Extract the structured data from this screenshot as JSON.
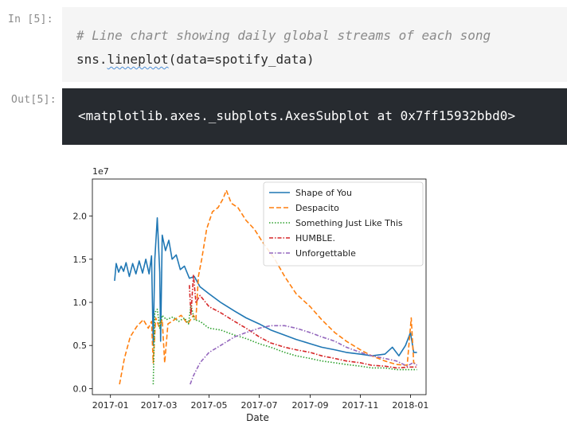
{
  "cell_in": {
    "prompt": "In [5]:",
    "comment": "# Line chart showing daily global streams of each song",
    "code_prefix": "sns.",
    "code_func": "lineplot",
    "code_suffix": "(data=spotify_data)"
  },
  "cell_out": {
    "prompt": "Out[5]:",
    "text": "<matplotlib.axes._subplots.AxesSubplot at 0x7ff15932bbd0>"
  },
  "chart_data": {
    "type": "line",
    "title": "",
    "xlabel": "Date",
    "ylabel": "",
    "y_offset_label": "1e7",
    "xlim": [
      "2016-12-10",
      "2018-01-20"
    ],
    "ylim": [
      -0.07,
      2.43
    ],
    "x_ticks": [
      "2017-01",
      "2017-03",
      "2017-05",
      "2017-07",
      "2017-09",
      "2017-11",
      "2018-01"
    ],
    "y_ticks": [
      "0.0",
      "0.5",
      "1.0",
      "1.5",
      "2.0"
    ],
    "y_tick_values": [
      0.0,
      0.5,
      1.0,
      1.5,
      2.0
    ],
    "legend_position": "upper-right",
    "grid": false,
    "series": [
      {
        "name": "Shape of You",
        "color": "#1f77b4",
        "dash": "solid",
        "points": [
          [
            "2017-01-06",
            1.25
          ],
          [
            "2017-01-08",
            1.45
          ],
          [
            "2017-01-11",
            1.35
          ],
          [
            "2017-01-14",
            1.42
          ],
          [
            "2017-01-17",
            1.36
          ],
          [
            "2017-01-20",
            1.46
          ],
          [
            "2017-01-24",
            1.3
          ],
          [
            "2017-01-28",
            1.45
          ],
          [
            "2017-02-01",
            1.33
          ],
          [
            "2017-02-05",
            1.48
          ],
          [
            "2017-02-09",
            1.34
          ],
          [
            "2017-02-13",
            1.5
          ],
          [
            "2017-02-17",
            1.33
          ],
          [
            "2017-02-20",
            1.54
          ],
          [
            "2017-02-22",
            0.5
          ],
          [
            "2017-02-24",
            1.5
          ],
          [
            "2017-02-27",
            1.98
          ],
          [
            "2017-03-02",
            1.35
          ],
          [
            "2017-03-03",
            0.55
          ],
          [
            "2017-03-05",
            1.78
          ],
          [
            "2017-03-09",
            1.6
          ],
          [
            "2017-03-13",
            1.72
          ],
          [
            "2017-03-17",
            1.5
          ],
          [
            "2017-03-22",
            1.55
          ],
          [
            "2017-03-27",
            1.38
          ],
          [
            "2017-04-01",
            1.42
          ],
          [
            "2017-04-07",
            1.28
          ],
          [
            "2017-04-13",
            1.3
          ],
          [
            "2017-04-20",
            1.18
          ],
          [
            "2017-05-01",
            1.1
          ],
          [
            "2017-05-15",
            1.0
          ],
          [
            "2017-06-01",
            0.9
          ],
          [
            "2017-06-15",
            0.82
          ],
          [
            "2017-07-01",
            0.75
          ],
          [
            "2017-07-15",
            0.68
          ],
          [
            "2017-08-01",
            0.62
          ],
          [
            "2017-08-15",
            0.57
          ],
          [
            "2017-09-01",
            0.52
          ],
          [
            "2017-09-15",
            0.48
          ],
          [
            "2017-10-01",
            0.45
          ],
          [
            "2017-10-15",
            0.42
          ],
          [
            "2017-11-01",
            0.4
          ],
          [
            "2017-11-15",
            0.38
          ],
          [
            "2017-12-01",
            0.4
          ],
          [
            "2017-12-10",
            0.48
          ],
          [
            "2017-12-18",
            0.38
          ],
          [
            "2017-12-26",
            0.5
          ],
          [
            "2018-01-01",
            0.65
          ],
          [
            "2018-01-05",
            0.42
          ],
          [
            "2018-01-09",
            0.42
          ]
        ]
      },
      {
        "name": "Despacito",
        "color": "#ff7f0e",
        "dash": "dashed",
        "points": [
          [
            "2017-01-12",
            0.05
          ],
          [
            "2017-01-18",
            0.35
          ],
          [
            "2017-01-25",
            0.6
          ],
          [
            "2017-02-02",
            0.72
          ],
          [
            "2017-02-10",
            0.8
          ],
          [
            "2017-02-16",
            0.7
          ],
          [
            "2017-02-20",
            0.78
          ],
          [
            "2017-02-22",
            0.3
          ],
          [
            "2017-02-25",
            0.82
          ],
          [
            "2017-03-01",
            0.72
          ],
          [
            "2017-03-05",
            0.8
          ],
          [
            "2017-03-08",
            0.3
          ],
          [
            "2017-03-12",
            0.75
          ],
          [
            "2017-03-20",
            0.8
          ],
          [
            "2017-03-28",
            0.85
          ],
          [
            "2017-04-05",
            0.75
          ],
          [
            "2017-04-12",
            0.85
          ],
          [
            "2017-04-15",
            0.8
          ],
          [
            "2017-04-18",
            1.3
          ],
          [
            "2017-04-22",
            1.5
          ],
          [
            "2017-04-28",
            1.85
          ],
          [
            "2017-05-05",
            2.05
          ],
          [
            "2017-05-12",
            2.1
          ],
          [
            "2017-05-18",
            2.2
          ],
          [
            "2017-05-22",
            2.3
          ],
          [
            "2017-05-28",
            2.15
          ],
          [
            "2017-06-05",
            2.1
          ],
          [
            "2017-06-15",
            1.95
          ],
          [
            "2017-06-25",
            1.85
          ],
          [
            "2017-07-05",
            1.7
          ],
          [
            "2017-07-20",
            1.5
          ],
          [
            "2017-08-01",
            1.3
          ],
          [
            "2017-08-15",
            1.1
          ],
          [
            "2017-09-01",
            0.95
          ],
          [
            "2017-09-15",
            0.8
          ],
          [
            "2017-10-01",
            0.65
          ],
          [
            "2017-10-15",
            0.55
          ],
          [
            "2017-11-01",
            0.45
          ],
          [
            "2017-11-15",
            0.38
          ],
          [
            "2017-12-01",
            0.32
          ],
          [
            "2017-12-15",
            0.28
          ],
          [
            "2017-12-28",
            0.27
          ],
          [
            "2018-01-02",
            0.82
          ],
          [
            "2018-01-05",
            0.3
          ],
          [
            "2018-01-09",
            0.28
          ]
        ]
      },
      {
        "name": "Something Just Like This",
        "color": "#2ca02c",
        "dash": "dotted",
        "points": [
          [
            "2017-02-22",
            0.05
          ],
          [
            "2017-02-24",
            0.88
          ],
          [
            "2017-02-27",
            0.92
          ],
          [
            "2017-03-02",
            0.7
          ],
          [
            "2017-03-05",
            0.85
          ],
          [
            "2017-03-10",
            0.8
          ],
          [
            "2017-03-18",
            0.83
          ],
          [
            "2017-03-25",
            0.78
          ],
          [
            "2017-04-01",
            0.82
          ],
          [
            "2017-04-06",
            0.75
          ],
          [
            "2017-04-09",
            0.97
          ],
          [
            "2017-04-13",
            0.8
          ],
          [
            "2017-04-20",
            0.78
          ],
          [
            "2017-05-01",
            0.7
          ],
          [
            "2017-05-15",
            0.68
          ],
          [
            "2017-06-01",
            0.62
          ],
          [
            "2017-06-15",
            0.58
          ],
          [
            "2017-07-01",
            0.52
          ],
          [
            "2017-07-15",
            0.48
          ],
          [
            "2017-08-01",
            0.42
          ],
          [
            "2017-08-15",
            0.38
          ],
          [
            "2017-09-01",
            0.35
          ],
          [
            "2017-09-15",
            0.32
          ],
          [
            "2017-10-01",
            0.3
          ],
          [
            "2017-10-15",
            0.28
          ],
          [
            "2017-11-01",
            0.26
          ],
          [
            "2017-11-15",
            0.24
          ],
          [
            "2017-12-01",
            0.24
          ],
          [
            "2017-12-15",
            0.22
          ],
          [
            "2018-01-01",
            0.22
          ],
          [
            "2018-01-09",
            0.22
          ]
        ]
      },
      {
        "name": "HUMBLE.",
        "color": "#d62728",
        "dash": "dashdot",
        "points": [
          [
            "2017-04-07",
            1.2
          ],
          [
            "2017-04-09",
            0.85
          ],
          [
            "2017-04-12",
            1.32
          ],
          [
            "2017-04-15",
            1.0
          ],
          [
            "2017-04-20",
            1.08
          ],
          [
            "2017-05-01",
            0.95
          ],
          [
            "2017-05-15",
            0.88
          ],
          [
            "2017-06-01",
            0.78
          ],
          [
            "2017-06-15",
            0.7
          ],
          [
            "2017-07-01",
            0.6
          ],
          [
            "2017-07-15",
            0.53
          ],
          [
            "2017-08-01",
            0.48
          ],
          [
            "2017-08-15",
            0.45
          ],
          [
            "2017-09-01",
            0.42
          ],
          [
            "2017-09-15",
            0.38
          ],
          [
            "2017-10-01",
            0.35
          ],
          [
            "2017-10-15",
            0.32
          ],
          [
            "2017-11-01",
            0.3
          ],
          [
            "2017-11-15",
            0.27
          ],
          [
            "2017-12-01",
            0.26
          ],
          [
            "2017-12-15",
            0.24
          ],
          [
            "2018-01-01",
            0.25
          ],
          [
            "2018-01-09",
            0.25
          ]
        ]
      },
      {
        "name": "Unforgettable",
        "color": "#9467bd",
        "dash": "dashdot",
        "points": [
          [
            "2017-04-08",
            0.05
          ],
          [
            "2017-04-12",
            0.15
          ],
          [
            "2017-04-20",
            0.3
          ],
          [
            "2017-05-01",
            0.42
          ],
          [
            "2017-05-15",
            0.5
          ],
          [
            "2017-06-01",
            0.6
          ],
          [
            "2017-06-15",
            0.65
          ],
          [
            "2017-07-01",
            0.7
          ],
          [
            "2017-07-15",
            0.73
          ],
          [
            "2017-08-01",
            0.73
          ],
          [
            "2017-08-15",
            0.7
          ],
          [
            "2017-09-01",
            0.65
          ],
          [
            "2017-09-15",
            0.6
          ],
          [
            "2017-10-01",
            0.55
          ],
          [
            "2017-10-15",
            0.48
          ],
          [
            "2017-11-01",
            0.42
          ],
          [
            "2017-11-15",
            0.38
          ],
          [
            "2017-12-01",
            0.35
          ],
          [
            "2017-12-15",
            0.32
          ],
          [
            "2017-12-28",
            0.26
          ],
          [
            "2018-01-04",
            0.3
          ],
          [
            "2018-01-09",
            0.27
          ]
        ]
      }
    ]
  }
}
